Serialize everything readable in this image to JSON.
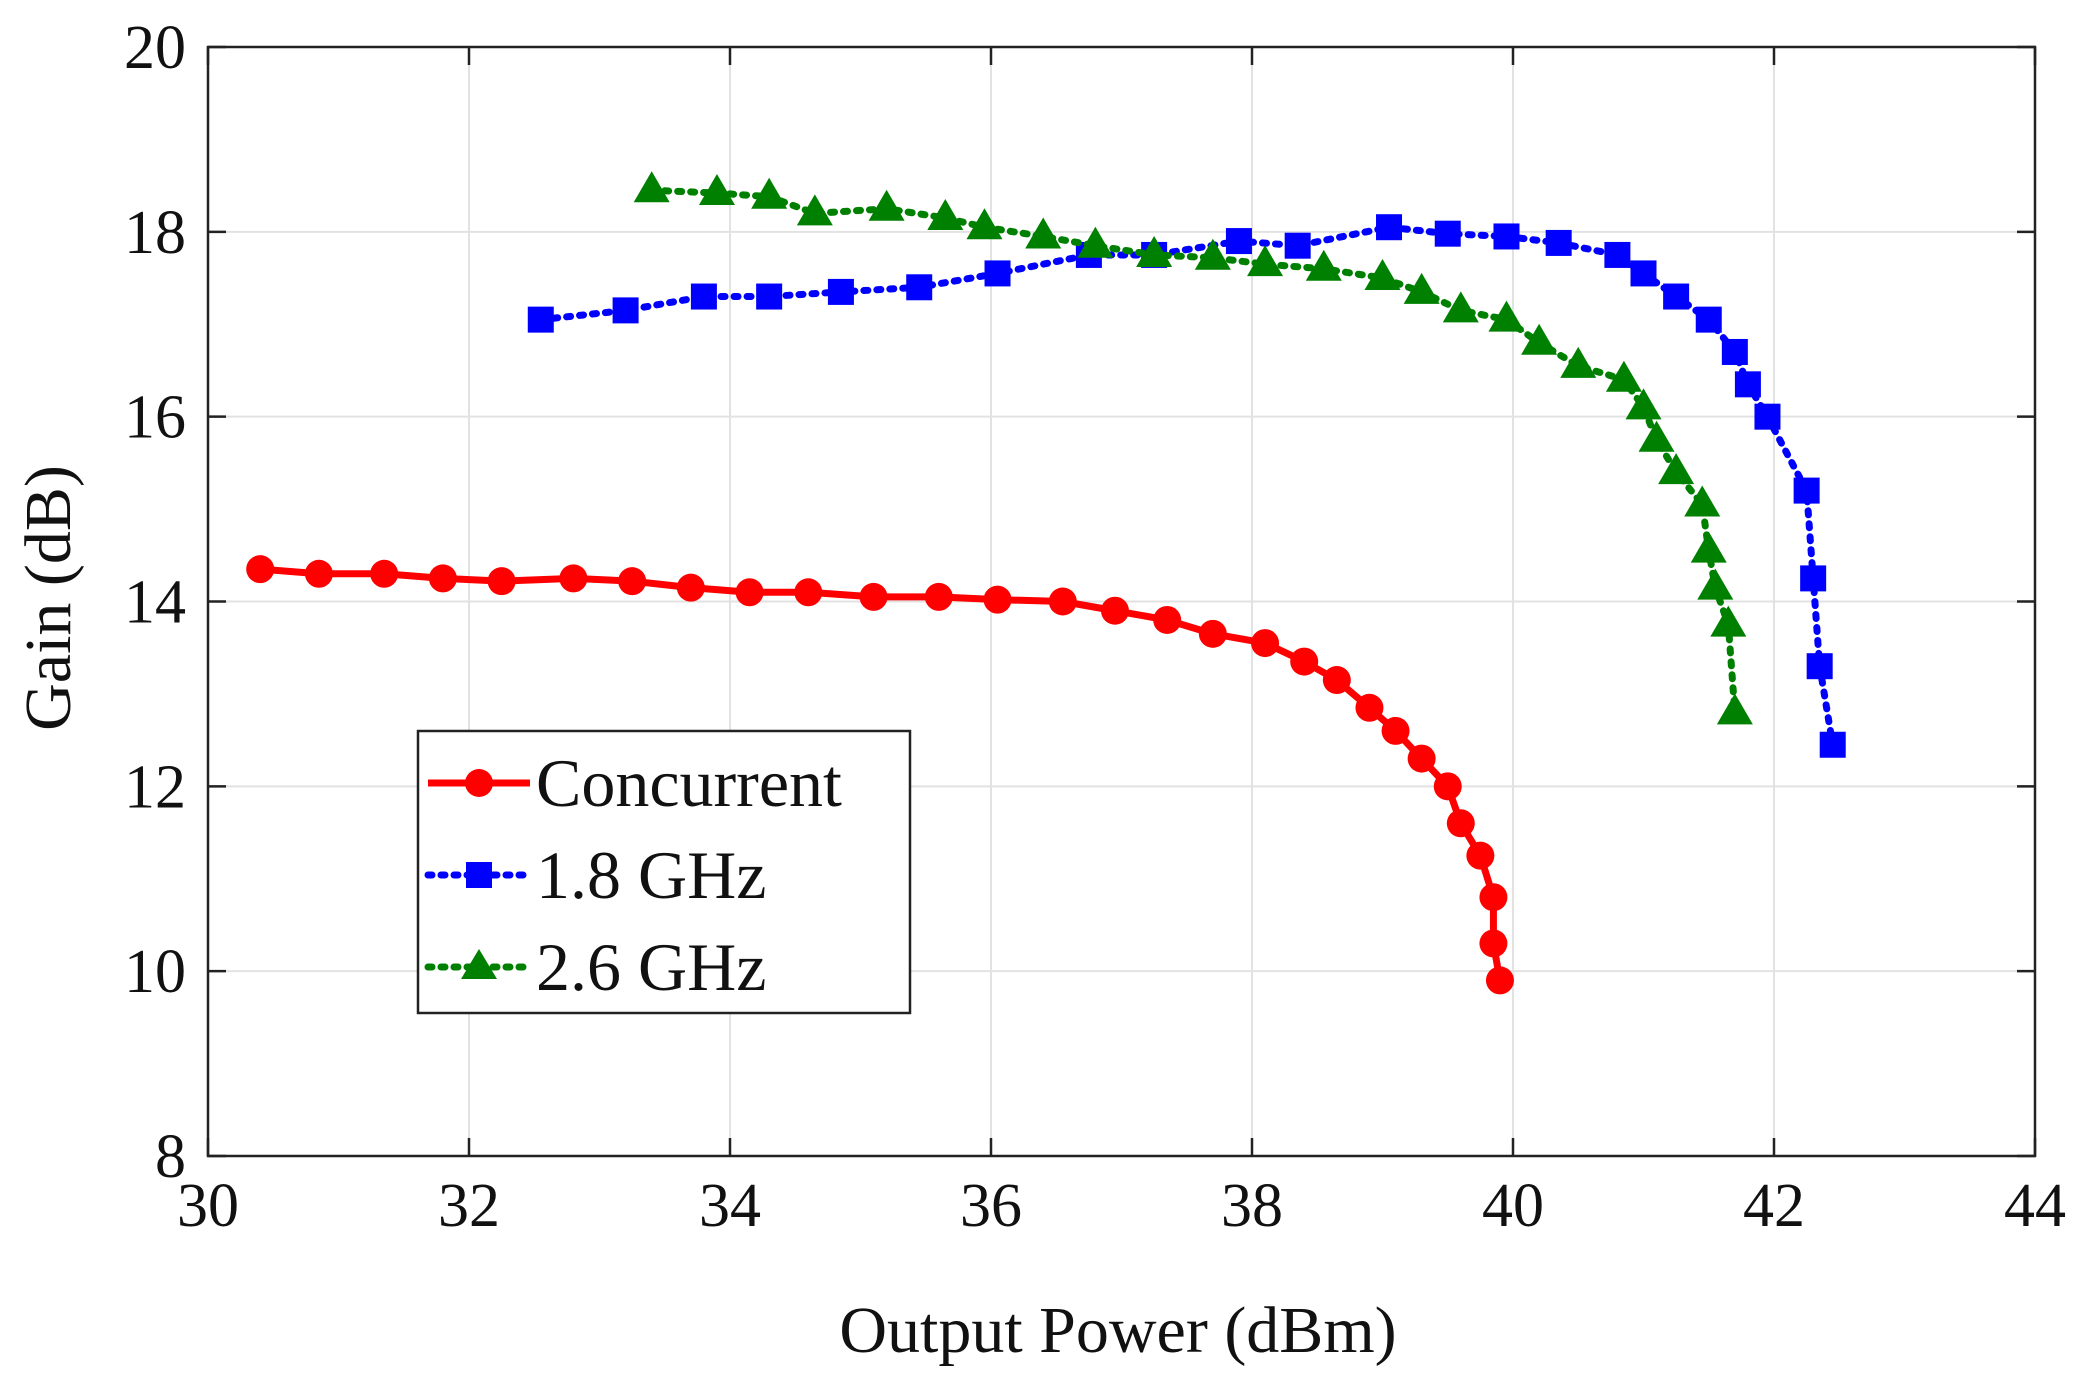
{
  "chart_data": {
    "type": "line",
    "title": "",
    "xlabel": "Output Power (dBm)",
    "ylabel": "Gain (dB)",
    "xlim": [
      30,
      44
    ],
    "ylim": [
      8,
      20
    ],
    "xticks": [
      30,
      32,
      34,
      36,
      38,
      40,
      42,
      44
    ],
    "yticks": [
      8,
      10,
      12,
      14,
      16,
      18,
      20
    ],
    "grid": true,
    "legend_position": "lower-left",
    "series": [
      {
        "name": "Concurrent",
        "color": "#ff0000",
        "line_style": "solid",
        "marker": "circle",
        "x": [
          30.4,
          30.85,
          31.35,
          31.8,
          32.25,
          32.8,
          33.25,
          33.7,
          34.15,
          34.6,
          35.1,
          35.6,
          36.05,
          36.55,
          36.95,
          37.35,
          37.7,
          38.1,
          38.4,
          38.65,
          38.9,
          39.1,
          39.3,
          39.5,
          39.6,
          39.75,
          39.85,
          39.85,
          39.9
        ],
        "y": [
          14.35,
          14.3,
          14.3,
          14.25,
          14.22,
          14.25,
          14.22,
          14.15,
          14.1,
          14.1,
          14.05,
          14.05,
          14.02,
          14.0,
          13.9,
          13.8,
          13.65,
          13.55,
          13.35,
          13.15,
          12.85,
          12.6,
          12.3,
          12.0,
          11.6,
          11.25,
          10.8,
          10.3,
          9.9
        ]
      },
      {
        "name": "1.8 GHz",
        "color": "#0000ff",
        "line_style": "dotted",
        "marker": "square",
        "x": [
          32.55,
          33.2,
          33.8,
          34.3,
          34.85,
          35.45,
          36.05,
          36.75,
          37.25,
          37.9,
          38.35,
          39.05,
          39.5,
          39.95,
          40.35,
          40.8,
          41.0,
          41.25,
          41.5,
          41.7,
          41.8,
          41.95,
          42.25,
          42.3,
          42.35,
          42.45
        ],
        "y": [
          17.05,
          17.15,
          17.3,
          17.3,
          17.35,
          17.4,
          17.55,
          17.75,
          17.75,
          17.9,
          17.85,
          18.05,
          17.98,
          17.95,
          17.88,
          17.75,
          17.55,
          17.3,
          17.05,
          16.7,
          16.35,
          16.0,
          15.2,
          14.25,
          13.3,
          12.45
        ]
      },
      {
        "name": "2.6 GHz",
        "color": "#008000",
        "line_style": "dotted",
        "marker": "triangle",
        "x": [
          33.4,
          33.9,
          34.3,
          34.65,
          35.2,
          35.65,
          35.95,
          36.4,
          36.8,
          37.25,
          37.7,
          38.1,
          38.55,
          39.0,
          39.3,
          39.6,
          39.95,
          40.2,
          40.5,
          40.85,
          41.0,
          41.1,
          41.25,
          41.45,
          41.5,
          41.55,
          41.65,
          41.7
        ],
        "y": [
          18.45,
          18.42,
          18.38,
          18.2,
          18.25,
          18.15,
          18.05,
          17.95,
          17.85,
          17.75,
          17.72,
          17.65,
          17.6,
          17.5,
          17.35,
          17.15,
          17.05,
          16.8,
          16.55,
          16.4,
          16.1,
          15.75,
          15.4,
          15.05,
          14.55,
          14.15,
          13.75,
          12.8
        ]
      }
    ]
  }
}
